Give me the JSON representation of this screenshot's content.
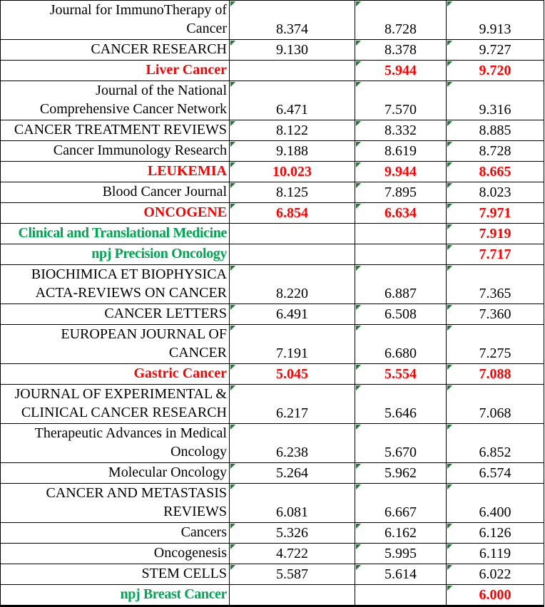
{
  "colors": {
    "highlight_red": "#FF0000",
    "new_journal_green": "#00A651",
    "cell_indicator_green": "#1E7B34",
    "border": "#000000",
    "background": "#FFFFFF"
  },
  "table": {
    "description": "Journal impact factor table, three year-columns of values",
    "rows": [
      {
        "name": "Journal for ImmunoTherapy of\nCancer",
        "values": [
          "8.374",
          "8.728",
          "9.913"
        ],
        "style": "normal"
      },
      {
        "name": "CANCER RESEARCH",
        "values": [
          "9.130",
          "8.378",
          "9.727"
        ],
        "style": "normal"
      },
      {
        "name": "Liver Cancer",
        "values": [
          "",
          "5.944",
          "9.720"
        ],
        "style": "red"
      },
      {
        "name": "Journal of the National\nComprehensive Cancer Network",
        "values": [
          "6.471",
          "7.570",
          "9.316"
        ],
        "style": "normal"
      },
      {
        "name": "CANCER TREATMENT REVIEWS",
        "values": [
          "8.122",
          "8.332",
          "8.885"
        ],
        "style": "normal"
      },
      {
        "name": "Cancer Immunology Research",
        "values": [
          "9.188",
          "8.619",
          "8.728"
        ],
        "style": "normal"
      },
      {
        "name": "LEUKEMIA",
        "values": [
          "10.023",
          "9.944",
          "8.665"
        ],
        "style": "red"
      },
      {
        "name": "Blood Cancer Journal",
        "values": [
          "8.125",
          "7.895",
          "8.023"
        ],
        "style": "normal"
      },
      {
        "name": "ONCOGENE",
        "values": [
          "6.854",
          "6.634",
          "7.971"
        ],
        "style": "red"
      },
      {
        "name": "Clinical and Translational Medicine",
        "values": [
          "",
          "",
          "7.919"
        ],
        "style": "green"
      },
      {
        "name": "npj Precision Oncology",
        "values": [
          "",
          "",
          "7.717"
        ],
        "style": "green"
      },
      {
        "name": "BIOCHIMICA ET BIOPHYSICA\nACTA-REVIEWS ON CANCER",
        "values": [
          "8.220",
          "6.887",
          "7.365"
        ],
        "style": "normal"
      },
      {
        "name": "CANCER LETTERS",
        "values": [
          "6.491",
          "6.508",
          "7.360"
        ],
        "style": "normal"
      },
      {
        "name": "EUROPEAN JOURNAL OF\nCANCER",
        "values": [
          "7.191",
          "6.680",
          "7.275"
        ],
        "style": "normal"
      },
      {
        "name": "Gastric Cancer",
        "values": [
          "5.045",
          "5.554",
          "7.088"
        ],
        "style": "red"
      },
      {
        "name": "JOURNAL OF EXPERIMENTAL &\nCLINICAL CANCER RESEARCH",
        "values": [
          "6.217",
          "5.646",
          "7.068"
        ],
        "style": "normal"
      },
      {
        "name": "Therapeutic Advances in Medical\nOncology",
        "values": [
          "6.238",
          "5.670",
          "6.852"
        ],
        "style": "normal"
      },
      {
        "name": "Molecular Oncology",
        "values": [
          "5.264",
          "5.962",
          "6.574"
        ],
        "style": "normal"
      },
      {
        "name": "CANCER AND METASTASIS\nREVIEWS",
        "values": [
          "6.081",
          "6.667",
          "6.400"
        ],
        "style": "normal"
      },
      {
        "name": "Cancers",
        "values": [
          "5.326",
          "6.162",
          "6.126"
        ],
        "style": "normal"
      },
      {
        "name": "Oncogenesis",
        "values": [
          "4.722",
          "5.995",
          "6.119"
        ],
        "style": "normal"
      },
      {
        "name": "STEM CELLS",
        "values": [
          "5.587",
          "5.614",
          "6.022"
        ],
        "style": "normal"
      },
      {
        "name": "npj Breast Cancer",
        "values": [
          "",
          "",
          "6.000"
        ],
        "style": "green"
      }
    ]
  }
}
